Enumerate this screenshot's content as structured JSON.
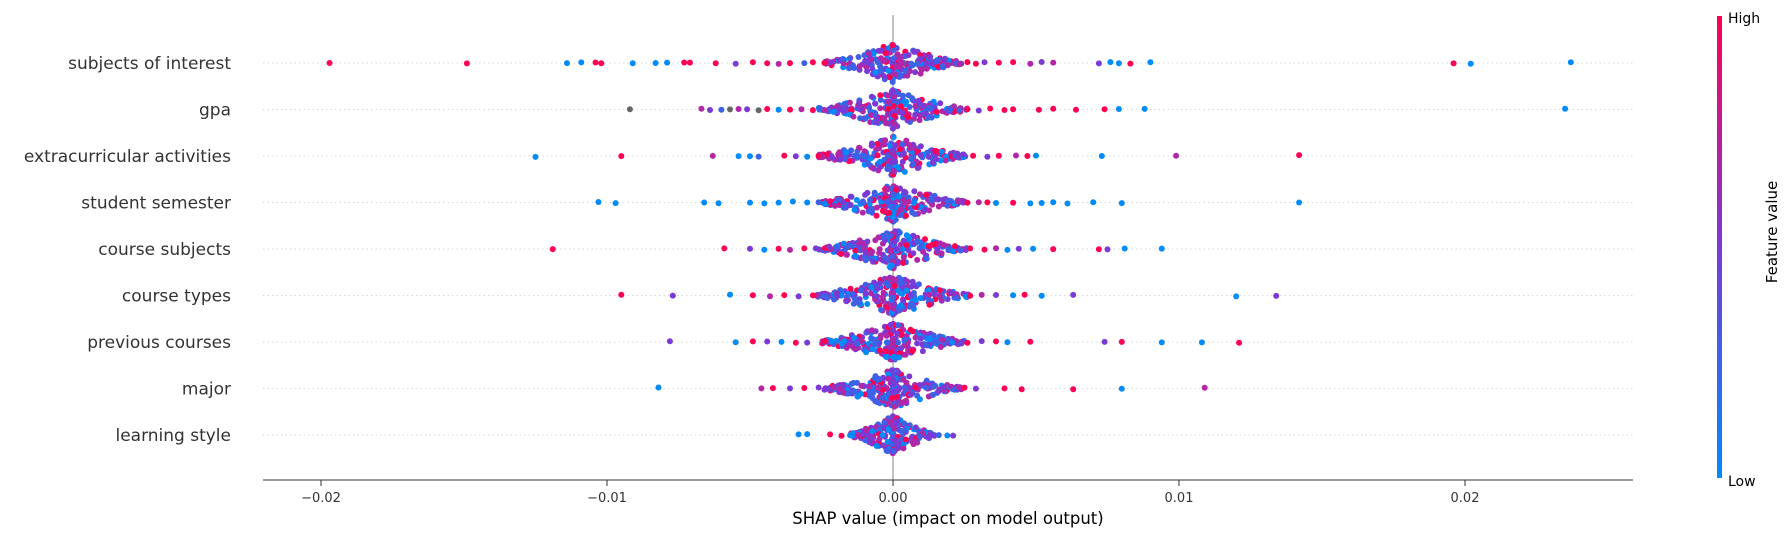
{
  "chart_data": {
    "type": "scatter",
    "subtype": "shap-beeswarm",
    "title": "",
    "xlabel": "SHAP value (impact on model output)",
    "xlim": [
      -0.022,
      0.026
    ],
    "x_ticks": [
      -0.02,
      -0.01,
      0.0,
      0.01,
      0.02
    ],
    "x_tick_labels": [
      "−0.02",
      "−0.01",
      "0.00",
      "0.01",
      "0.02"
    ],
    "zero_line": 0.0,
    "row_gridlines": true,
    "colorbar": {
      "title": "Feature value",
      "high_label": "High",
      "low_label": "Low",
      "low_color": "#008bfb",
      "high_color": "#ff0052",
      "placement": "right"
    },
    "features": [
      {
        "name": "subjects of interest",
        "points": [
          [
            -0.0197,
            "#ff0052"
          ],
          [
            -0.0149,
            "#ff0052"
          ],
          [
            -0.0114,
            "#008bfb"
          ],
          [
            -0.0109,
            "#008bfb"
          ],
          [
            -0.0104,
            "#ff0052"
          ],
          [
            -0.0102,
            "#ff0052"
          ],
          [
            -0.0091,
            "#008bfb"
          ],
          [
            -0.0083,
            "#008bfb"
          ],
          [
            -0.0079,
            "#008bfb"
          ],
          [
            -0.0073,
            "#ff0052"
          ],
          [
            -0.0071,
            "#ff0052"
          ],
          [
            -0.0062,
            "#ff0052"
          ],
          [
            -0.0055,
            "#7a3ad6"
          ],
          [
            -0.0049,
            "#ff0052"
          ],
          [
            -0.0044,
            "#ff0052"
          ],
          [
            -0.004,
            "#b227a6"
          ],
          [
            -0.0036,
            "#ff0052"
          ],
          [
            -0.0031,
            "#3d62e6"
          ],
          [
            -0.0028,
            "#ff0052"
          ],
          [
            -0.0024,
            "#ff0052"
          ],
          [
            0.0026,
            "#ff0052"
          ],
          [
            0.0029,
            "#ff0052"
          ],
          [
            0.0032,
            "#7a3ad6"
          ],
          [
            0.0037,
            "#ff0052"
          ],
          [
            0.0042,
            "#ff0052"
          ],
          [
            0.0048,
            "#b227a6"
          ],
          [
            0.0052,
            "#7a3ad6"
          ],
          [
            0.0056,
            "#b227a6"
          ],
          [
            0.0072,
            "#7a3ad6"
          ],
          [
            0.0076,
            "#008bfb"
          ],
          [
            0.0079,
            "#008bfb"
          ],
          [
            0.0083,
            "#ff0052"
          ],
          [
            0.009,
            "#008bfb"
          ],
          [
            0.0196,
            "#ff0052"
          ],
          [
            0.0202,
            "#008bfb"
          ],
          [
            0.0237,
            "#008bfb"
          ]
        ]
      },
      {
        "name": "gpa",
        "points": [
          [
            -0.0092,
            "#666666"
          ],
          [
            -0.0067,
            "#b227a6"
          ],
          [
            -0.0064,
            "#7a3ad6"
          ],
          [
            -0.006,
            "#3d62e6"
          ],
          [
            -0.0057,
            "#666666"
          ],
          [
            -0.0054,
            "#b227a6"
          ],
          [
            -0.0051,
            "#7a3ad6"
          ],
          [
            -0.0047,
            "#666666"
          ],
          [
            -0.0044,
            "#ff0052"
          ],
          [
            -0.004,
            "#008bfb"
          ],
          [
            -0.0036,
            "#ff0052"
          ],
          [
            -0.0032,
            "#b227a6"
          ],
          [
            -0.0028,
            "#ff0052"
          ],
          [
            0.0026,
            "#ff0052"
          ],
          [
            0.003,
            "#7a3ad6"
          ],
          [
            0.0034,
            "#ff0052"
          ],
          [
            0.0039,
            "#ff0052"
          ],
          [
            0.0042,
            "#ff0052"
          ],
          [
            0.0051,
            "#ff0052"
          ],
          [
            0.0056,
            "#ff0052"
          ],
          [
            0.0064,
            "#ff0052"
          ],
          [
            0.0074,
            "#ff0052"
          ],
          [
            0.0079,
            "#008bfb"
          ],
          [
            0.0088,
            "#008bfb"
          ],
          [
            0.0235,
            "#008bfb"
          ]
        ]
      },
      {
        "name": "extracurricular activities",
        "points": [
          [
            -0.0125,
            "#008bfb"
          ],
          [
            -0.0095,
            "#ff0052"
          ],
          [
            -0.0063,
            "#b227a6"
          ],
          [
            -0.0054,
            "#008bfb"
          ],
          [
            -0.005,
            "#008bfb"
          ],
          [
            -0.0047,
            "#3d62e6"
          ],
          [
            -0.0038,
            "#ff0052"
          ],
          [
            -0.0034,
            "#7a3ad6"
          ],
          [
            -0.003,
            "#008bfb"
          ],
          [
            -0.0026,
            "#ff0052"
          ],
          [
            0.0028,
            "#ff0052"
          ],
          [
            0.0033,
            "#7a3ad6"
          ],
          [
            0.0037,
            "#ff0052"
          ],
          [
            0.0043,
            "#b227a6"
          ],
          [
            0.0047,
            "#ff0052"
          ],
          [
            0.005,
            "#008bfb"
          ],
          [
            0.0073,
            "#008bfb"
          ],
          [
            0.0099,
            "#b227a6"
          ],
          [
            0.0142,
            "#ff0052"
          ]
        ]
      },
      {
        "name": "student semester",
        "points": [
          [
            -0.0103,
            "#008bfb"
          ],
          [
            -0.0097,
            "#008bfb"
          ],
          [
            -0.0066,
            "#008bfb"
          ],
          [
            -0.0061,
            "#008bfb"
          ],
          [
            -0.005,
            "#008bfb"
          ],
          [
            -0.0045,
            "#008bfb"
          ],
          [
            -0.004,
            "#008bfb"
          ],
          [
            -0.0035,
            "#008bfb"
          ],
          [
            -0.003,
            "#008bfb"
          ],
          [
            -0.0026,
            "#3d62e6"
          ],
          [
            0.0026,
            "#ff0052"
          ],
          [
            0.003,
            "#b227a6"
          ],
          [
            0.0033,
            "#ff0052"
          ],
          [
            0.0036,
            "#008bfb"
          ],
          [
            0.0042,
            "#ff0052"
          ],
          [
            0.0048,
            "#008bfb"
          ],
          [
            0.0052,
            "#008bfb"
          ],
          [
            0.0056,
            "#008bfb"
          ],
          [
            0.0061,
            "#008bfb"
          ],
          [
            0.007,
            "#008bfb"
          ],
          [
            0.008,
            "#008bfb"
          ],
          [
            0.0142,
            "#008bfb"
          ]
        ]
      },
      {
        "name": "course subjects",
        "points": [
          [
            -0.0119,
            "#ff0052"
          ],
          [
            -0.0059,
            "#ff0052"
          ],
          [
            -0.005,
            "#7a3ad6"
          ],
          [
            -0.0045,
            "#008bfb"
          ],
          [
            -0.004,
            "#ff0052"
          ],
          [
            -0.0036,
            "#b227a6"
          ],
          [
            -0.0031,
            "#ff0052"
          ],
          [
            -0.0027,
            "#7a3ad6"
          ],
          [
            0.0027,
            "#ff0052"
          ],
          [
            0.0032,
            "#ff0052"
          ],
          [
            0.0036,
            "#b227a6"
          ],
          [
            0.004,
            "#008bfb"
          ],
          [
            0.0044,
            "#7a3ad6"
          ],
          [
            0.0049,
            "#008bfb"
          ],
          [
            0.0056,
            "#ff0052"
          ],
          [
            0.0072,
            "#ff0052"
          ],
          [
            0.0075,
            "#7a3ad6"
          ],
          [
            0.0081,
            "#008bfb"
          ],
          [
            0.0094,
            "#008bfb"
          ]
        ]
      },
      {
        "name": "course types",
        "points": [
          [
            -0.0095,
            "#ff0052"
          ],
          [
            -0.0077,
            "#7a3ad6"
          ],
          [
            -0.0057,
            "#008bfb"
          ],
          [
            -0.0049,
            "#ff0052"
          ],
          [
            -0.0043,
            "#b227a6"
          ],
          [
            -0.0038,
            "#ff0052"
          ],
          [
            -0.0033,
            "#7a3ad6"
          ],
          [
            -0.0028,
            "#ff0052"
          ],
          [
            0.0027,
            "#ff0052"
          ],
          [
            0.0031,
            "#b227a6"
          ],
          [
            0.0036,
            "#7a3ad6"
          ],
          [
            0.0042,
            "#008bfb"
          ],
          [
            0.0046,
            "#ff0052"
          ],
          [
            0.0052,
            "#008bfb"
          ],
          [
            0.0063,
            "#7a3ad6"
          ],
          [
            0.012,
            "#008bfb"
          ],
          [
            0.0134,
            "#7a3ad6"
          ]
        ]
      },
      {
        "name": "previous courses",
        "points": [
          [
            -0.0078,
            "#7a3ad6"
          ],
          [
            -0.0055,
            "#008bfb"
          ],
          [
            -0.0049,
            "#ff0052"
          ],
          [
            -0.0044,
            "#7a3ad6"
          ],
          [
            -0.0039,
            "#008bfb"
          ],
          [
            -0.0034,
            "#ff0052"
          ],
          [
            -0.003,
            "#7a3ad6"
          ],
          [
            -0.0024,
            "#ff0052"
          ],
          [
            0.0026,
            "#ff0052"
          ],
          [
            0.0031,
            "#7a3ad6"
          ],
          [
            0.0036,
            "#ff0052"
          ],
          [
            0.004,
            "#008bfb"
          ],
          [
            0.0048,
            "#ff0052"
          ],
          [
            0.0074,
            "#7a3ad6"
          ],
          [
            0.008,
            "#ff0052"
          ],
          [
            0.0094,
            "#008bfb"
          ],
          [
            0.0108,
            "#008bfb"
          ],
          [
            0.0121,
            "#ff0052"
          ]
        ]
      },
      {
        "name": "major",
        "points": [
          [
            -0.0082,
            "#008bfb"
          ],
          [
            -0.0046,
            "#b227a6"
          ],
          [
            -0.0042,
            "#ff0052"
          ],
          [
            -0.0036,
            "#7a3ad6"
          ],
          [
            -0.0031,
            "#ff0052"
          ],
          [
            -0.0026,
            "#7a3ad6"
          ],
          [
            0.0025,
            "#ff0052"
          ],
          [
            0.0029,
            "#7a3ad6"
          ],
          [
            0.0039,
            "#ff0052"
          ],
          [
            0.0045,
            "#ff0052"
          ],
          [
            0.0063,
            "#ff0052"
          ],
          [
            0.008,
            "#008bfb"
          ],
          [
            0.0109,
            "#b227a6"
          ]
        ]
      },
      {
        "name": "learning style",
        "points": [
          [
            -0.0033,
            "#008bfb"
          ],
          [
            -0.003,
            "#008bfb"
          ],
          [
            -0.0022,
            "#ff0052"
          ],
          [
            -0.0018,
            "#ff0052"
          ],
          [
            0.0016,
            "#3d62e6"
          ],
          [
            0.0019,
            "#008bfb"
          ],
          [
            0.0021,
            "#7a3ad6"
          ]
        ]
      }
    ]
  }
}
